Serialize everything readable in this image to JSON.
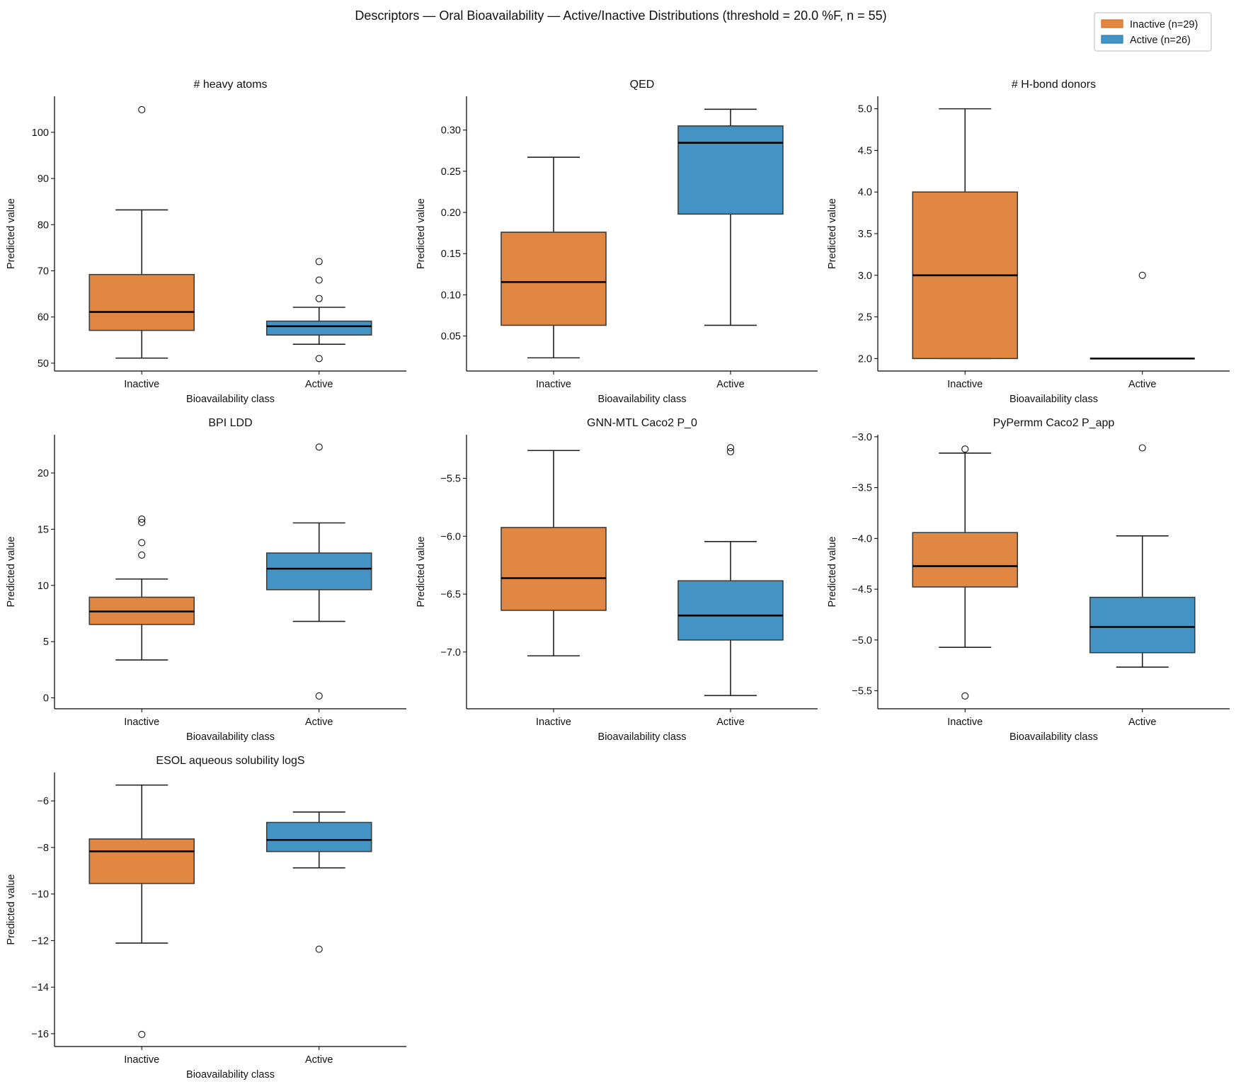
{
  "title": "Descriptors — Oral Bioavailability — Active/Inactive Distributions  (threshold = 20.0 %F, n = 55)",
  "legend": {
    "placement": "top-right",
    "items": [
      {
        "label": "Inactive (n=29)",
        "color": "#e08743"
      },
      {
        "label": "Active (n=26)",
        "color": "#4394c4"
      }
    ]
  },
  "colors": {
    "Inactive": "#e08743",
    "Active": "#4394c4",
    "edge": "#3d3d3d",
    "median": "#000000"
  },
  "chart_data": [
    {
      "type": "box",
      "title": "# heavy atoms",
      "xlabel": "Bioavailability class",
      "ylabel": "Predicted value",
      "categories": [
        "Inactive",
        "Active"
      ],
      "ylim": [
        48.3,
        107.8
      ],
      "yticks": [
        50,
        60,
        70,
        80,
        90,
        100
      ],
      "ytick_labels": [
        "50",
        "60",
        "70",
        "80",
        "90",
        "100"
      ],
      "grid": false,
      "series": [
        {
          "name": "Inactive",
          "whisker_low": 51.1,
          "q1": 57.1,
          "median": 61.1,
          "q3": 69.2,
          "whisker_high": 83.2,
          "outliers": [
            104.9
          ]
        },
        {
          "name": "Active",
          "whisker_low": 54.1,
          "q1": 56.1,
          "median": 58.0,
          "q3": 59.1,
          "whisker_high": 62.1,
          "outliers": [
            72.0,
            68.0,
            64.0,
            51.0
          ]
        }
      ]
    },
    {
      "type": "box",
      "title": "QED",
      "xlabel": "Bioavailability class",
      "ylabel": "Predicted value",
      "categories": [
        "Inactive",
        "Active"
      ],
      "ylim": [
        0.0075,
        0.341
      ],
      "yticks": [
        0.05,
        0.1,
        0.15,
        0.2,
        0.25,
        0.3
      ],
      "ytick_labels": [
        "0.05",
        "0.10",
        "0.15",
        "0.20",
        "0.25",
        "0.30"
      ],
      "grid": false,
      "series": [
        {
          "name": "Inactive",
          "whisker_low": 0.0235,
          "q1": 0.063,
          "median": 0.1155,
          "q3": 0.176,
          "whisker_high": 0.267,
          "outliers": []
        },
        {
          "name": "Active",
          "whisker_low": 0.063,
          "q1": 0.198,
          "median": 0.2845,
          "q3": 0.305,
          "whisker_high": 0.3253,
          "outliers": []
        }
      ]
    },
    {
      "type": "box",
      "title": "# H-bond donors",
      "xlabel": "Bioavailability class",
      "ylabel": "Predicted value",
      "categories": [
        "Inactive",
        "Active"
      ],
      "ylim": [
        1.85,
        5.15
      ],
      "yticks": [
        2.0,
        2.5,
        3.0,
        3.5,
        4.0,
        4.5,
        5.0
      ],
      "ytick_labels": [
        "2.0",
        "2.5",
        "3.0",
        "3.5",
        "4.0",
        "4.5",
        "5.0"
      ],
      "grid": false,
      "series": [
        {
          "name": "Inactive",
          "whisker_low": 2,
          "q1": 2,
          "median": 3,
          "q3": 4,
          "whisker_high": 5,
          "outliers": []
        },
        {
          "name": "Active",
          "whisker_low": 2,
          "q1": 2,
          "median": 2,
          "q3": 2,
          "whisker_high": 2,
          "outliers": [
            3
          ]
        }
      ]
    },
    {
      "type": "box",
      "title": "BPI LDD",
      "xlabel": "Bioavailability class",
      "ylabel": "Predicted value",
      "categories": [
        "Inactive",
        "Active"
      ],
      "ylim": [
        -0.97,
        23.4
      ],
      "yticks": [
        0,
        5,
        10,
        15,
        20
      ],
      "ytick_labels": [
        "0",
        "5",
        "10",
        "15",
        "20"
      ],
      "grid": false,
      "series": [
        {
          "name": "Inactive",
          "whisker_low": 3.37,
          "q1": 6.53,
          "median": 7.68,
          "q3": 8.95,
          "whisker_high": 10.57,
          "outliers": [
            15.9,
            15.6,
            13.8,
            12.7
          ]
        },
        {
          "name": "Active",
          "whisker_low": 6.8,
          "q1": 9.62,
          "median": 11.49,
          "q3": 12.88,
          "whisker_high": 15.56,
          "outliers": [
            22.3,
            0.17
          ]
        }
      ]
    },
    {
      "type": "box",
      "title": "GNN-MTL Caco2 P_0",
      "xlabel": "Bioavailability class",
      "ylabel": "Predicted value",
      "categories": [
        "Inactive",
        "Active"
      ],
      "ylim": [
        -7.49,
        -5.124
      ],
      "yticks": [
        -7.0,
        -6.5,
        -6.0,
        -5.5
      ],
      "ytick_labels": [
        "−7.0",
        "−6.5",
        "−6.0",
        "−5.5"
      ],
      "grid": false,
      "series": [
        {
          "name": "Inactive",
          "whisker_low": -7.033,
          "q1": -6.64,
          "median": -6.362,
          "q3": -5.925,
          "whisker_high": -5.26,
          "outliers": []
        },
        {
          "name": "Active",
          "whisker_low": -7.376,
          "q1": -6.896,
          "median": -6.685,
          "q3": -6.385,
          "whisker_high": -6.046,
          "outliers": [
            -5.236,
            -5.27
          ]
        }
      ]
    },
    {
      "type": "box",
      "title": "PyPermm Caco2 P_app",
      "xlabel": "Bioavailability class",
      "ylabel": "Predicted value",
      "categories": [
        "Inactive",
        "Active"
      ],
      "ylim": [
        -5.677,
        -2.98
      ],
      "yticks": [
        -5.5,
        -5.0,
        -4.5,
        -4.0,
        -3.5,
        -3.0
      ],
      "ytick_labels": [
        "−5.5",
        "−5.0",
        "−4.5",
        "−4.0",
        "−3.5",
        "−3.0"
      ],
      "grid": false,
      "series": [
        {
          "name": "Inactive",
          "whisker_low": -5.072,
          "q1": -4.478,
          "median": -4.273,
          "q3": -3.943,
          "whisker_high": -3.161,
          "outliers": [
            -3.121,
            -5.551
          ]
        },
        {
          "name": "Active",
          "whisker_low": -5.267,
          "q1": -5.125,
          "median": -4.872,
          "q3": -4.58,
          "whisker_high": -3.975,
          "outliers": [
            -3.109
          ]
        }
      ]
    },
    {
      "type": "box",
      "title": "ESOL aqueous solubility logS",
      "xlabel": "Bioavailability class",
      "ylabel": "Predicted value",
      "categories": [
        "Inactive",
        "Active"
      ],
      "ylim": [
        -16.55,
        -4.78
      ],
      "yticks": [
        -16,
        -14,
        -12,
        -10,
        -8,
        -6
      ],
      "ytick_labels": [
        "−16",
        "−14",
        "−12",
        "−10",
        "−8",
        "−6"
      ],
      "grid": false,
      "series": [
        {
          "name": "Inactive",
          "whisker_low": -12.107,
          "q1": -9.547,
          "median": -8.165,
          "q3": -7.636,
          "whisker_high": -5.32,
          "outliers": [
            -16.03
          ]
        },
        {
          "name": "Active",
          "whisker_low": -8.876,
          "q1": -8.175,
          "median": -7.677,
          "q3": -6.925,
          "whisker_high": -6.478,
          "outliers": [
            -12.37
          ]
        }
      ]
    }
  ]
}
